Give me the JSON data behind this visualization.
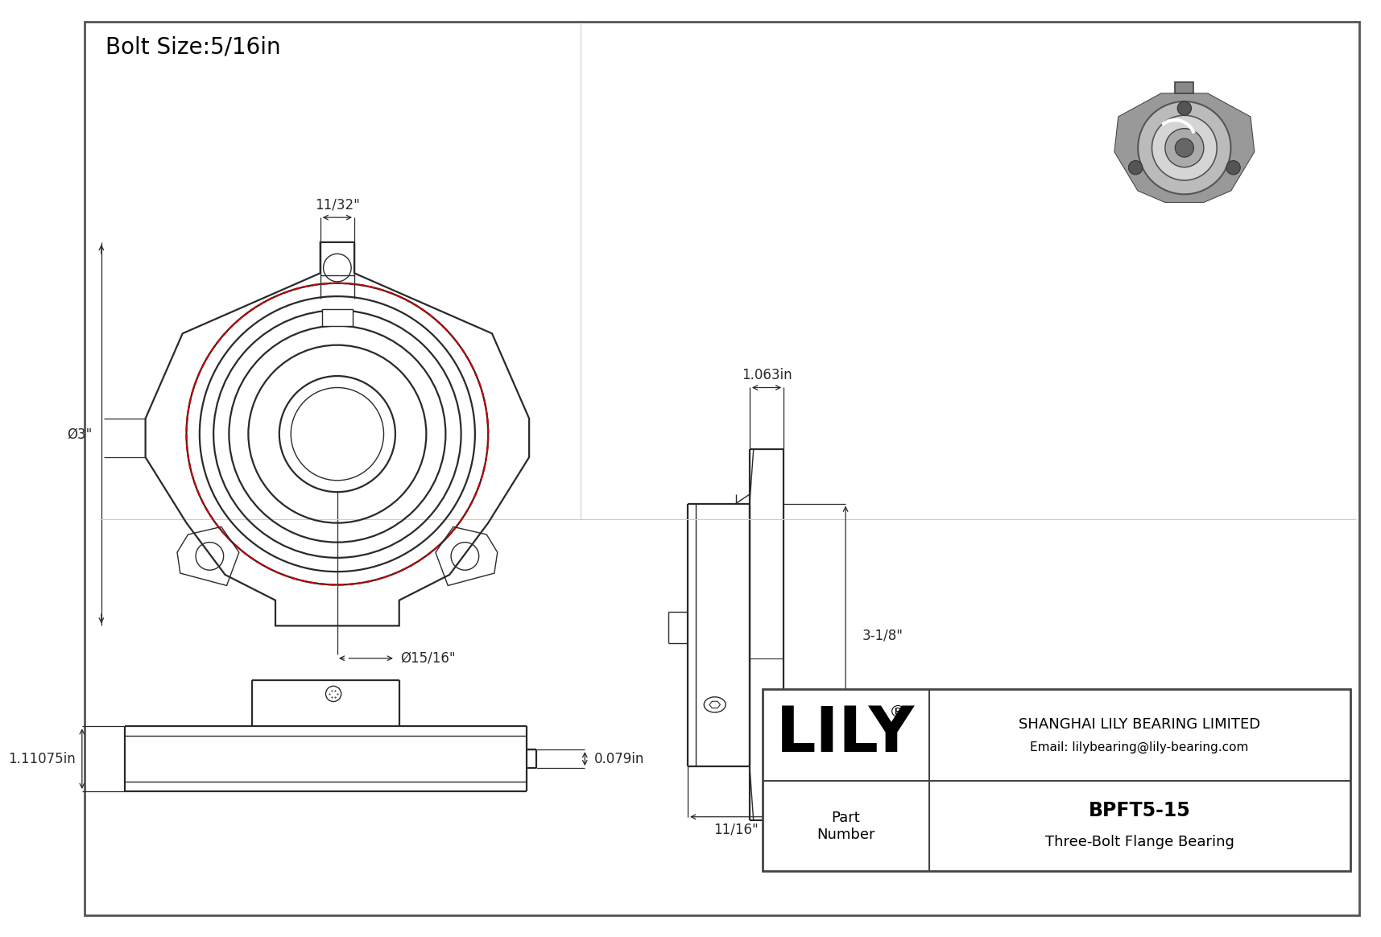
{
  "title": "Bolt Size:5/16in",
  "line_color": "#2a2a2a",
  "red_dash_color": "#cc0000",
  "dim_color": "#2a2a2a",
  "title_fontsize": 20,
  "dim_fontsize": 12,
  "company": "SHANGHAI LILY BEARING LIMITED",
  "email": "Email: lilybearing@lily-bearing.com",
  "part_number": "BPFT5-15",
  "part_type": "Three-Bolt Flange Bearing",
  "part_number_label": "Part\nNumber",
  "logo_text": "LILY",
  "dims": {
    "top_width": "11/32\"",
    "diameter_circle": "Ø3\"",
    "bore_dia": "Ø15/16\"",
    "side_width": "1.063in",
    "side_height": "3-1/8\"",
    "side_bottom": "11/16\"",
    "depth1": "1.11075in",
    "depth2": "0.079in"
  }
}
